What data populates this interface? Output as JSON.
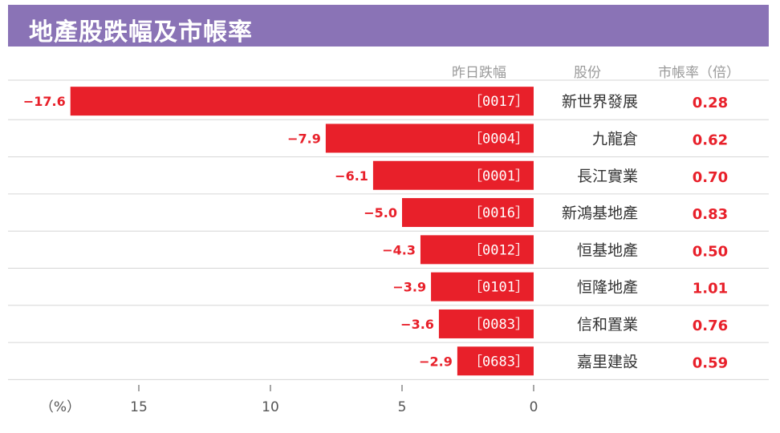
{
  "title": "地產股跌幅及市帳率",
  "headers": {
    "change": "昨日跌幅",
    "stock": "股份",
    "pb": "市帳率（倍）"
  },
  "chart_data": {
    "type": "bar",
    "orientation": "horizontal",
    "title": "地產股跌幅及市帳率",
    "xlabel": "（%）",
    "x_ticks": [
      "15",
      "10",
      "5",
      "0"
    ],
    "xlim": [
      0,
      -17.6
    ],
    "series": [
      {
        "values": [
          -17.6,
          -7.9,
          -6.1,
          -5.0,
          -4.3,
          -3.9,
          -3.6,
          -2.9
        ]
      }
    ],
    "rows": [
      {
        "change": -17.6,
        "change_label": "−17.6",
        "code": "［0017］",
        "name": "新世界發展",
        "pb": "0.28"
      },
      {
        "change": -7.9,
        "change_label": "−7.9",
        "code": "［0004］",
        "name": "九龍倉",
        "pb": "0.62"
      },
      {
        "change": -6.1,
        "change_label": "−6.1",
        "code": "［0001］",
        "name": "長江實業",
        "pb": "0.70"
      },
      {
        "change": -5.0,
        "change_label": "−5.0",
        "code": "［0016］",
        "name": "新鴻基地產",
        "pb": "0.83"
      },
      {
        "change": -4.3,
        "change_label": "−4.3",
        "code": "［0012］",
        "name": "恒基地產",
        "pb": "0.50"
      },
      {
        "change": -3.9,
        "change_label": "−3.9",
        "code": "［0101］",
        "name": "恒隆地產",
        "pb": "1.01"
      },
      {
        "change": -3.6,
        "change_label": "−3.6",
        "code": "［0083］",
        "name": "信和置業",
        "pb": "0.76"
      },
      {
        "change": -2.9,
        "change_label": "−2.9",
        "code": "［0683］",
        "name": "嘉里建設",
        "pb": "0.59"
      }
    ],
    "bar_color": "#e8202a",
    "value_label_color": "#e8202a",
    "grid": false
  },
  "colors": {
    "title_bg": "#8a73b6",
    "title_text": "#ffffff",
    "header_text": "#9a9a9a",
    "row_divider": "#d6d6d6",
    "bar_code_text": "#ffffff",
    "name_text": "#333333",
    "pb_text": "#e8202a"
  }
}
